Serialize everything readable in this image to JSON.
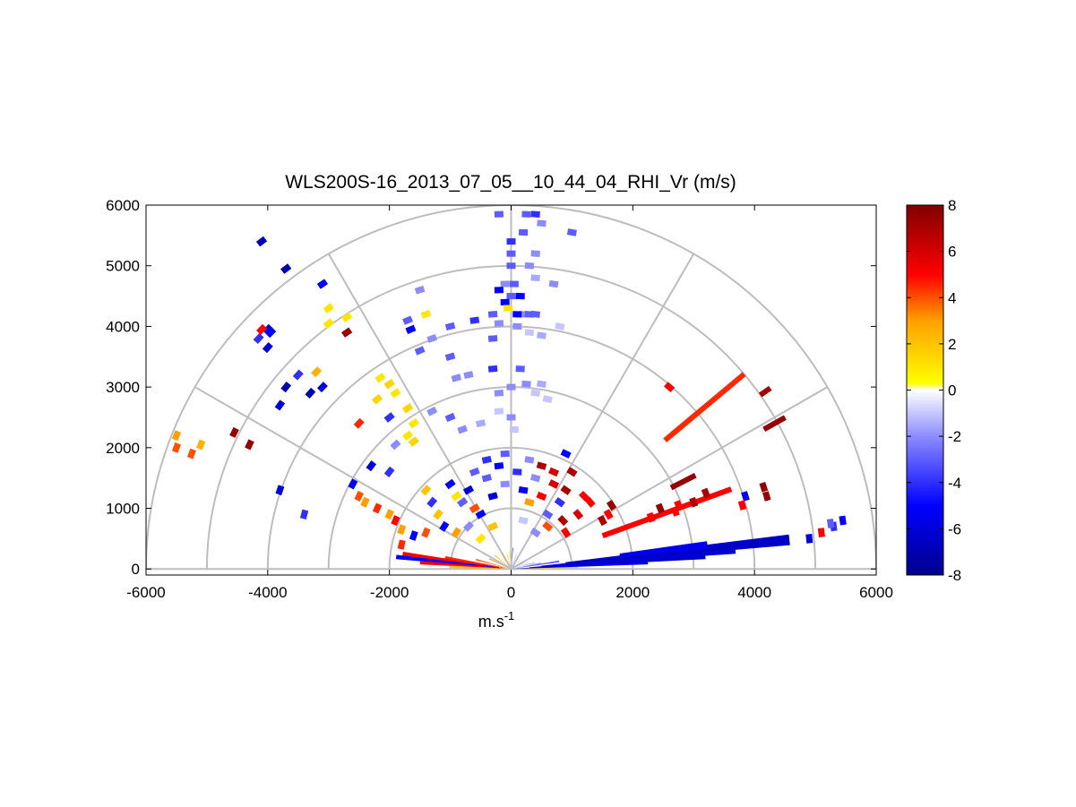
{
  "chart_data": {
    "type": "polar-rhi",
    "title": "WLS200S-16_2013_07_05__10_44_04_RHI_Vr (m/s)",
    "xlabel_base": "m.s",
    "xlabel_exp": "-1",
    "ylabel": "",
    "xlim": [
      -6000,
      6000
    ],
    "ylim": [
      -100,
      6000
    ],
    "xticks": [
      -6000,
      -4000,
      -2000,
      0,
      2000,
      4000,
      6000
    ],
    "yticks": [
      0,
      1000,
      2000,
      3000,
      4000,
      5000,
      6000
    ],
    "xtick_labels": [
      "-6000",
      "-4000",
      "-2000",
      "0",
      "2000",
      "4000",
      "6000"
    ],
    "ytick_labels": [
      "0",
      "1000",
      "2000",
      "3000",
      "4000",
      "5000",
      "6000"
    ],
    "range_rings": [
      1000,
      2000,
      3000,
      4000,
      5000,
      6000
    ],
    "spoke_angles_deg": [
      0,
      30,
      60,
      90,
      120,
      150,
      180
    ],
    "colorbar": {
      "min": -8,
      "max": 8,
      "ticks": [
        -8,
        -6,
        -4,
        -2,
        0,
        2,
        4,
        6,
        8
      ],
      "tick_labels": [
        "-8",
        "-6",
        "-4",
        "-2",
        "0",
        "2",
        "4",
        "6",
        "8"
      ],
      "stops": [
        {
          "v": -8,
          "color": "#00008c"
        },
        {
          "v": -5,
          "color": "#0000ff"
        },
        {
          "v": -2,
          "color": "#8c8cff"
        },
        {
          "v": 0,
          "color": "#ffffff"
        },
        {
          "v": 0.3,
          "color": "#ffff00"
        },
        {
          "v": 3,
          "color": "#ffa000"
        },
        {
          "v": 5,
          "color": "#ff0000"
        },
        {
          "v": 8,
          "color": "#800000"
        }
      ]
    },
    "sectors": [
      {
        "az": 2,
        "r0": 100,
        "r1": 1100,
        "v": 1.5
      },
      {
        "az": 3,
        "r0": 50,
        "r1": 2250,
        "v": -5
      },
      {
        "az": 4,
        "r0": 300,
        "r1": 3200,
        "v": -6.5
      },
      {
        "az": 5,
        "r0": 500,
        "r1": 3700,
        "v": -6
      },
      {
        "az": 6,
        "r0": 900,
        "r1": 4600,
        "v": -6.5
      },
      {
        "az": 7,
        "r0": 1800,
        "r1": 3250,
        "v": -5.5
      },
      {
        "az": 9,
        "r0": 100,
        "r1": 800,
        "v": -3
      },
      {
        "az": 11,
        "r0": 200,
        "r1": 500,
        "v": -2
      },
      {
        "az": 15,
        "r0": 80,
        "r1": 400,
        "v": -1.5
      },
      {
        "az": 20,
        "r0": 60,
        "r1": 300,
        "v": -1
      },
      {
        "az": 30,
        "r0": 50,
        "r1": 250,
        "v": -2
      },
      {
        "az": 45,
        "r0": 50,
        "r1": 200,
        "v": -1
      },
      {
        "az": 70,
        "r0": 50,
        "r1": 250,
        "v": -1.5
      },
      {
        "az": 85,
        "r0": 50,
        "r1": 350,
        "v": -3
      },
      {
        "az": 95,
        "r0": 50,
        "r1": 300,
        "v": 1
      },
      {
        "az": 105,
        "r0": 50,
        "r1": 250,
        "v": 2
      },
      {
        "az": 120,
        "r0": 50,
        "r1": 300,
        "v": 3
      },
      {
        "az": 140,
        "r0": 50,
        "r1": 350,
        "v": 2.5
      },
      {
        "az": 155,
        "r0": 60,
        "r1": 400,
        "v": 3.5
      },
      {
        "az": 165,
        "r0": 80,
        "r1": 600,
        "v": 4
      },
      {
        "az": 170,
        "r0": 100,
        "r1": 1100,
        "v": 4.5
      },
      {
        "az": 172,
        "r0": 150,
        "r1": 1800,
        "v": 5
      },
      {
        "az": 174,
        "r0": 200,
        "r1": 1900,
        "v": -5
      },
      {
        "az": 176,
        "r0": 100,
        "r1": 1500,
        "v": 5
      },
      {
        "az": 178,
        "r0": 50,
        "r1": 1000,
        "v": 2
      }
    ],
    "rays": [
      {
        "az": 20,
        "r0": 1600,
        "r1": 3850,
        "v": 5
      },
      {
        "az": 27,
        "r0": 2950,
        "r1": 3400,
        "v": 7.5
      },
      {
        "az": 29,
        "r0": 4750,
        "r1": 5150,
        "v": 7.5
      },
      {
        "az": 35,
        "r0": 5000,
        "r1": 5200,
        "v": 7
      },
      {
        "az": 40,
        "r0": 3300,
        "r1": 5000,
        "v": 4.5
      }
    ],
    "gates": [
      {
        "x": 5450,
        "y": 800,
        "v": -5
      },
      {
        "x": 5300,
        "y": 700,
        "v": -4
      },
      {
        "x": 5250,
        "y": 750,
        "v": -3
      },
      {
        "x": 5100,
        "y": 600,
        "v": 5
      },
      {
        "x": 4900,
        "y": 500,
        "v": -6
      },
      {
        "x": 4200,
        "y": 1200,
        "v": 7.5
      },
      {
        "x": 4150,
        "y": 1350,
        "v": 7.5
      },
      {
        "x": 3850,
        "y": 1200,
        "v": -5
      },
      {
        "x": 3800,
        "y": 1050,
        "v": 5
      },
      {
        "x": 3200,
        "y": 1250,
        "v": 7
      },
      {
        "x": 3000,
        "y": 1100,
        "v": 7
      },
      {
        "x": 2750,
        "y": 1050,
        "v": 5
      },
      {
        "x": 2700,
        "y": 950,
        "v": 5
      },
      {
        "x": 2450,
        "y": 1000,
        "v": 7.5
      },
      {
        "x": 2300,
        "y": 850,
        "v": 5
      },
      {
        "x": 2600,
        "y": 3000,
        "v": 5
      },
      {
        "x": 1650,
        "y": 1050,
        "v": 7.5
      },
      {
        "x": 1600,
        "y": 900,
        "v": 5
      },
      {
        "x": 1500,
        "y": 800,
        "v": 7
      },
      {
        "x": 900,
        "y": 600,
        "v": 5
      },
      {
        "x": 850,
        "y": 800,
        "v": 7
      },
      {
        "x": 900,
        "y": 1900,
        "v": -5
      },
      {
        "x": 1000,
        "y": 1600,
        "v": 7
      },
      {
        "x": 1200,
        "y": 1200,
        "v": 5
      },
      {
        "x": 1000,
        "y": 5550,
        "v": -3
      },
      {
        "x": 400,
        "y": 5850,
        "v": -4
      },
      {
        "x": 250,
        "y": 5850,
        "v": -3
      },
      {
        "x": -200,
        "y": 5850,
        "v": -3
      },
      {
        "x": 200,
        "y": 5550,
        "v": -3
      },
      {
        "x": 0,
        "y": 5400,
        "v": -4
      },
      {
        "x": 0,
        "y": 5200,
        "v": -3
      },
      {
        "x": 0,
        "y": 5000,
        "v": -3
      },
      {
        "x": 400,
        "y": 5200,
        "v": -2
      },
      {
        "x": 300,
        "y": 5000,
        "v": -2
      },
      {
        "x": 400,
        "y": 4800,
        "v": -1.5
      },
      {
        "x": 500,
        "y": 5700,
        "v": -2
      },
      {
        "x": -100,
        "y": 4700,
        "v": -2
      },
      {
        "x": 50,
        "y": 4700,
        "v": -3
      },
      {
        "x": -200,
        "y": 4600,
        "v": -5
      },
      {
        "x": 0,
        "y": 4500,
        "v": -3
      },
      {
        "x": -100,
        "y": 4400,
        "v": -5
      },
      {
        "x": 150,
        "y": 4500,
        "v": -5
      },
      {
        "x": 200,
        "y": 4200,
        "v": -2
      },
      {
        "x": 300,
        "y": 4200,
        "v": -3
      },
      {
        "x": 400,
        "y": 4200,
        "v": -3
      },
      {
        "x": -300,
        "y": 4200,
        "v": -3
      },
      {
        "x": -50,
        "y": 4300,
        "v": 1
      },
      {
        "x": 100,
        "y": 4200,
        "v": -5
      },
      {
        "x": -200,
        "y": 4050,
        "v": -2
      },
      {
        "x": 100,
        "y": 4000,
        "v": -2
      },
      {
        "x": 300,
        "y": 3900,
        "v": -1
      },
      {
        "x": 500,
        "y": 3850,
        "v": -1.5
      },
      {
        "x": 700,
        "y": 4700,
        "v": -2
      },
      {
        "x": 800,
        "y": 4000,
        "v": -1
      },
      {
        "x": -300,
        "y": 3800,
        "v": -3
      },
      {
        "x": -600,
        "y": 4100,
        "v": -4
      },
      {
        "x": -1000,
        "y": 4000,
        "v": -3
      },
      {
        "x": -1700,
        "y": 4100,
        "v": -3
      },
      {
        "x": -1400,
        "y": 4200,
        "v": 1
      },
      {
        "x": -1500,
        "y": 4600,
        "v": -2
      },
      {
        "x": -1650,
        "y": 3950,
        "v": -5
      },
      {
        "x": -1300,
        "y": 3800,
        "v": -2
      },
      {
        "x": -300,
        "y": 3300,
        "v": -4
      },
      {
        "x": -1500,
        "y": 3600,
        "v": -3
      },
      {
        "x": -1000,
        "y": 3500,
        "v": -3
      },
      {
        "x": -900,
        "y": 3150,
        "v": -2
      },
      {
        "x": -700,
        "y": 3200,
        "v": -2
      },
      {
        "x": 150,
        "y": 3300,
        "v": -3
      },
      {
        "x": 250,
        "y": 3050,
        "v": -2
      },
      {
        "x": 500,
        "y": 3050,
        "v": -1.5
      },
      {
        "x": 0,
        "y": 3000,
        "v": -2
      },
      {
        "x": 400,
        "y": 2900,
        "v": -1
      },
      {
        "x": -200,
        "y": 2900,
        "v": -2
      },
      {
        "x": 600,
        "y": 2800,
        "v": -1
      },
      {
        "x": -1700,
        "y": 2650,
        "v": 1.5
      },
      {
        "x": -1600,
        "y": 2400,
        "v": 1
      },
      {
        "x": -2000,
        "y": 2500,
        "v": -4
      },
      {
        "x": -1300,
        "y": 2600,
        "v": -2
      },
      {
        "x": -1000,
        "y": 2500,
        "v": -3
      },
      {
        "x": -1700,
        "y": 2200,
        "v": 1
      },
      {
        "x": -1900,
        "y": 2050,
        "v": -2
      },
      {
        "x": -1600,
        "y": 2100,
        "v": 1.5
      },
      {
        "x": -800,
        "y": 2300,
        "v": -2
      },
      {
        "x": -500,
        "y": 2400,
        "v": -1.5
      },
      {
        "x": -200,
        "y": 2600,
        "v": -1
      },
      {
        "x": 0,
        "y": 2500,
        "v": -2
      },
      {
        "x": 50,
        "y": 2300,
        "v": -1
      },
      {
        "x": -1900,
        "y": 2900,
        "v": 1
      },
      {
        "x": -2150,
        "y": 3150,
        "v": 1
      },
      {
        "x": -2200,
        "y": 2800,
        "v": 1.5
      },
      {
        "x": -2000,
        "y": 3050,
        "v": 1.5
      },
      {
        "x": -2500,
        "y": 2400,
        "v": 4.5
      },
      {
        "x": -2300,
        "y": 1700,
        "v": -6
      },
      {
        "x": -2000,
        "y": 1600,
        "v": -4
      },
      {
        "x": -2700,
        "y": 4150,
        "v": 1
      },
      {
        "x": -3000,
        "y": 4300,
        "v": 1
      },
      {
        "x": -3000,
        "y": 4050,
        "v": 1
      },
      {
        "x": -2700,
        "y": 3900,
        "v": 7.5
      },
      {
        "x": -3200,
        "y": 3250,
        "v": 2.5
      },
      {
        "x": -3500,
        "y": 3200,
        "v": -4
      },
      {
        "x": -3100,
        "y": 3000,
        "v": -6
      },
      {
        "x": -3300,
        "y": 2900,
        "v": -7
      },
      {
        "x": -3100,
        "y": 4700,
        "v": -5
      },
      {
        "x": -3700,
        "y": 3000,
        "v": -7
      },
      {
        "x": -3800,
        "y": 2700,
        "v": -6
      },
      {
        "x": -3800,
        "y": 1300,
        "v": -6
      },
      {
        "x": -3400,
        "y": 900,
        "v": -4
      },
      {
        "x": -2600,
        "y": 1400,
        "v": -5
      },
      {
        "x": -2500,
        "y": 1200,
        "v": 4
      },
      {
        "x": -2400,
        "y": 1100,
        "v": 3
      },
      {
        "x": -2200,
        "y": 1000,
        "v": 4.5
      },
      {
        "x": -2000,
        "y": 900,
        "v": 3
      },
      {
        "x": -1900,
        "y": 800,
        "v": 5
      },
      {
        "x": -1800,
        "y": 650,
        "v": 3
      },
      {
        "x": -1800,
        "y": 400,
        "v": 4.5
      },
      {
        "x": -1600,
        "y": 550,
        "v": -5
      },
      {
        "x": -1400,
        "y": 600,
        "v": 4
      },
      {
        "x": -4000,
        "y": 3950,
        "v": -6
      },
      {
        "x": -3950,
        "y": 3900,
        "v": -5
      },
      {
        "x": -4150,
        "y": 3800,
        "v": -4
      },
      {
        "x": -4000,
        "y": 3650,
        "v": -6
      },
      {
        "x": -4100,
        "y": 3950,
        "v": 5
      },
      {
        "x": -4100,
        "y": 5400,
        "v": -7
      },
      {
        "x": -3700,
        "y": 4950,
        "v": -7
      },
      {
        "x": -4550,
        "y": 2250,
        "v": 7.5
      },
      {
        "x": -4300,
        "y": 2050,
        "v": 7.5
      },
      {
        "x": -5100,
        "y": 2050,
        "v": 2.5
      },
      {
        "x": -5250,
        "y": 1900,
        "v": 4
      },
      {
        "x": -5500,
        "y": 2200,
        "v": 3
      },
      {
        "x": -5500,
        "y": 2000,
        "v": 4
      },
      {
        "x": -1000,
        "y": 1400,
        "v": -5
      },
      {
        "x": -900,
        "y": 1200,
        "v": 1
      },
      {
        "x": -800,
        "y": 1100,
        "v": -3
      },
      {
        "x": -700,
        "y": 1300,
        "v": -6
      },
      {
        "x": -600,
        "y": 1000,
        "v": 4
      },
      {
        "x": -500,
        "y": 900,
        "v": -5
      },
      {
        "x": -400,
        "y": 1500,
        "v": -3
      },
      {
        "x": -300,
        "y": 1200,
        "v": -6
      },
      {
        "x": -200,
        "y": 1700,
        "v": -5
      },
      {
        "x": -100,
        "y": 1400,
        "v": -2
      },
      {
        "x": 100,
        "y": 1600,
        "v": -4
      },
      {
        "x": 200,
        "y": 1300,
        "v": -5
      },
      {
        "x": 300,
        "y": 1100,
        "v": 3
      },
      {
        "x": 400,
        "y": 1500,
        "v": -2
      },
      {
        "x": 500,
        "y": 1200,
        "v": 5
      },
      {
        "x": 600,
        "y": 900,
        "v": -3
      },
      {
        "x": 700,
        "y": 1400,
        "v": 6
      },
      {
        "x": 800,
        "y": 1100,
        "v": -4
      },
      {
        "x": -1200,
        "y": 900,
        "v": 2
      },
      {
        "x": -1100,
        "y": 700,
        "v": -5
      },
      {
        "x": -900,
        "y": 600,
        "v": 3
      },
      {
        "x": -700,
        "y": 700,
        "v": -2
      },
      {
        "x": -500,
        "y": 500,
        "v": 1
      },
      {
        "x": 400,
        "y": 600,
        "v": -2
      },
      {
        "x": 600,
        "y": 700,
        "v": 4
      },
      {
        "x": 200,
        "y": 800,
        "v": -1
      },
      {
        "x": -300,
        "y": 700,
        "v": 2
      },
      {
        "x": 1100,
        "y": 900,
        "v": 6
      },
      {
        "x": -1300,
        "y": 1100,
        "v": -4
      },
      {
        "x": -100,
        "y": 1900,
        "v": -3
      },
      {
        "x": 300,
        "y": 1800,
        "v": -2
      },
      {
        "x": -400,
        "y": 1800,
        "v": -4
      },
      {
        "x": 500,
        "y": 1700,
        "v": 7
      },
      {
        "x": -600,
        "y": 1600,
        "v": -3
      },
      {
        "x": 700,
        "y": 1600,
        "v": 6
      },
      {
        "x": 900,
        "y": 1300,
        "v": 7
      },
      {
        "x": 1300,
        "y": 1100,
        "v": 5
      },
      {
        "x": -1400,
        "y": 1300,
        "v": 2
      }
    ]
  }
}
